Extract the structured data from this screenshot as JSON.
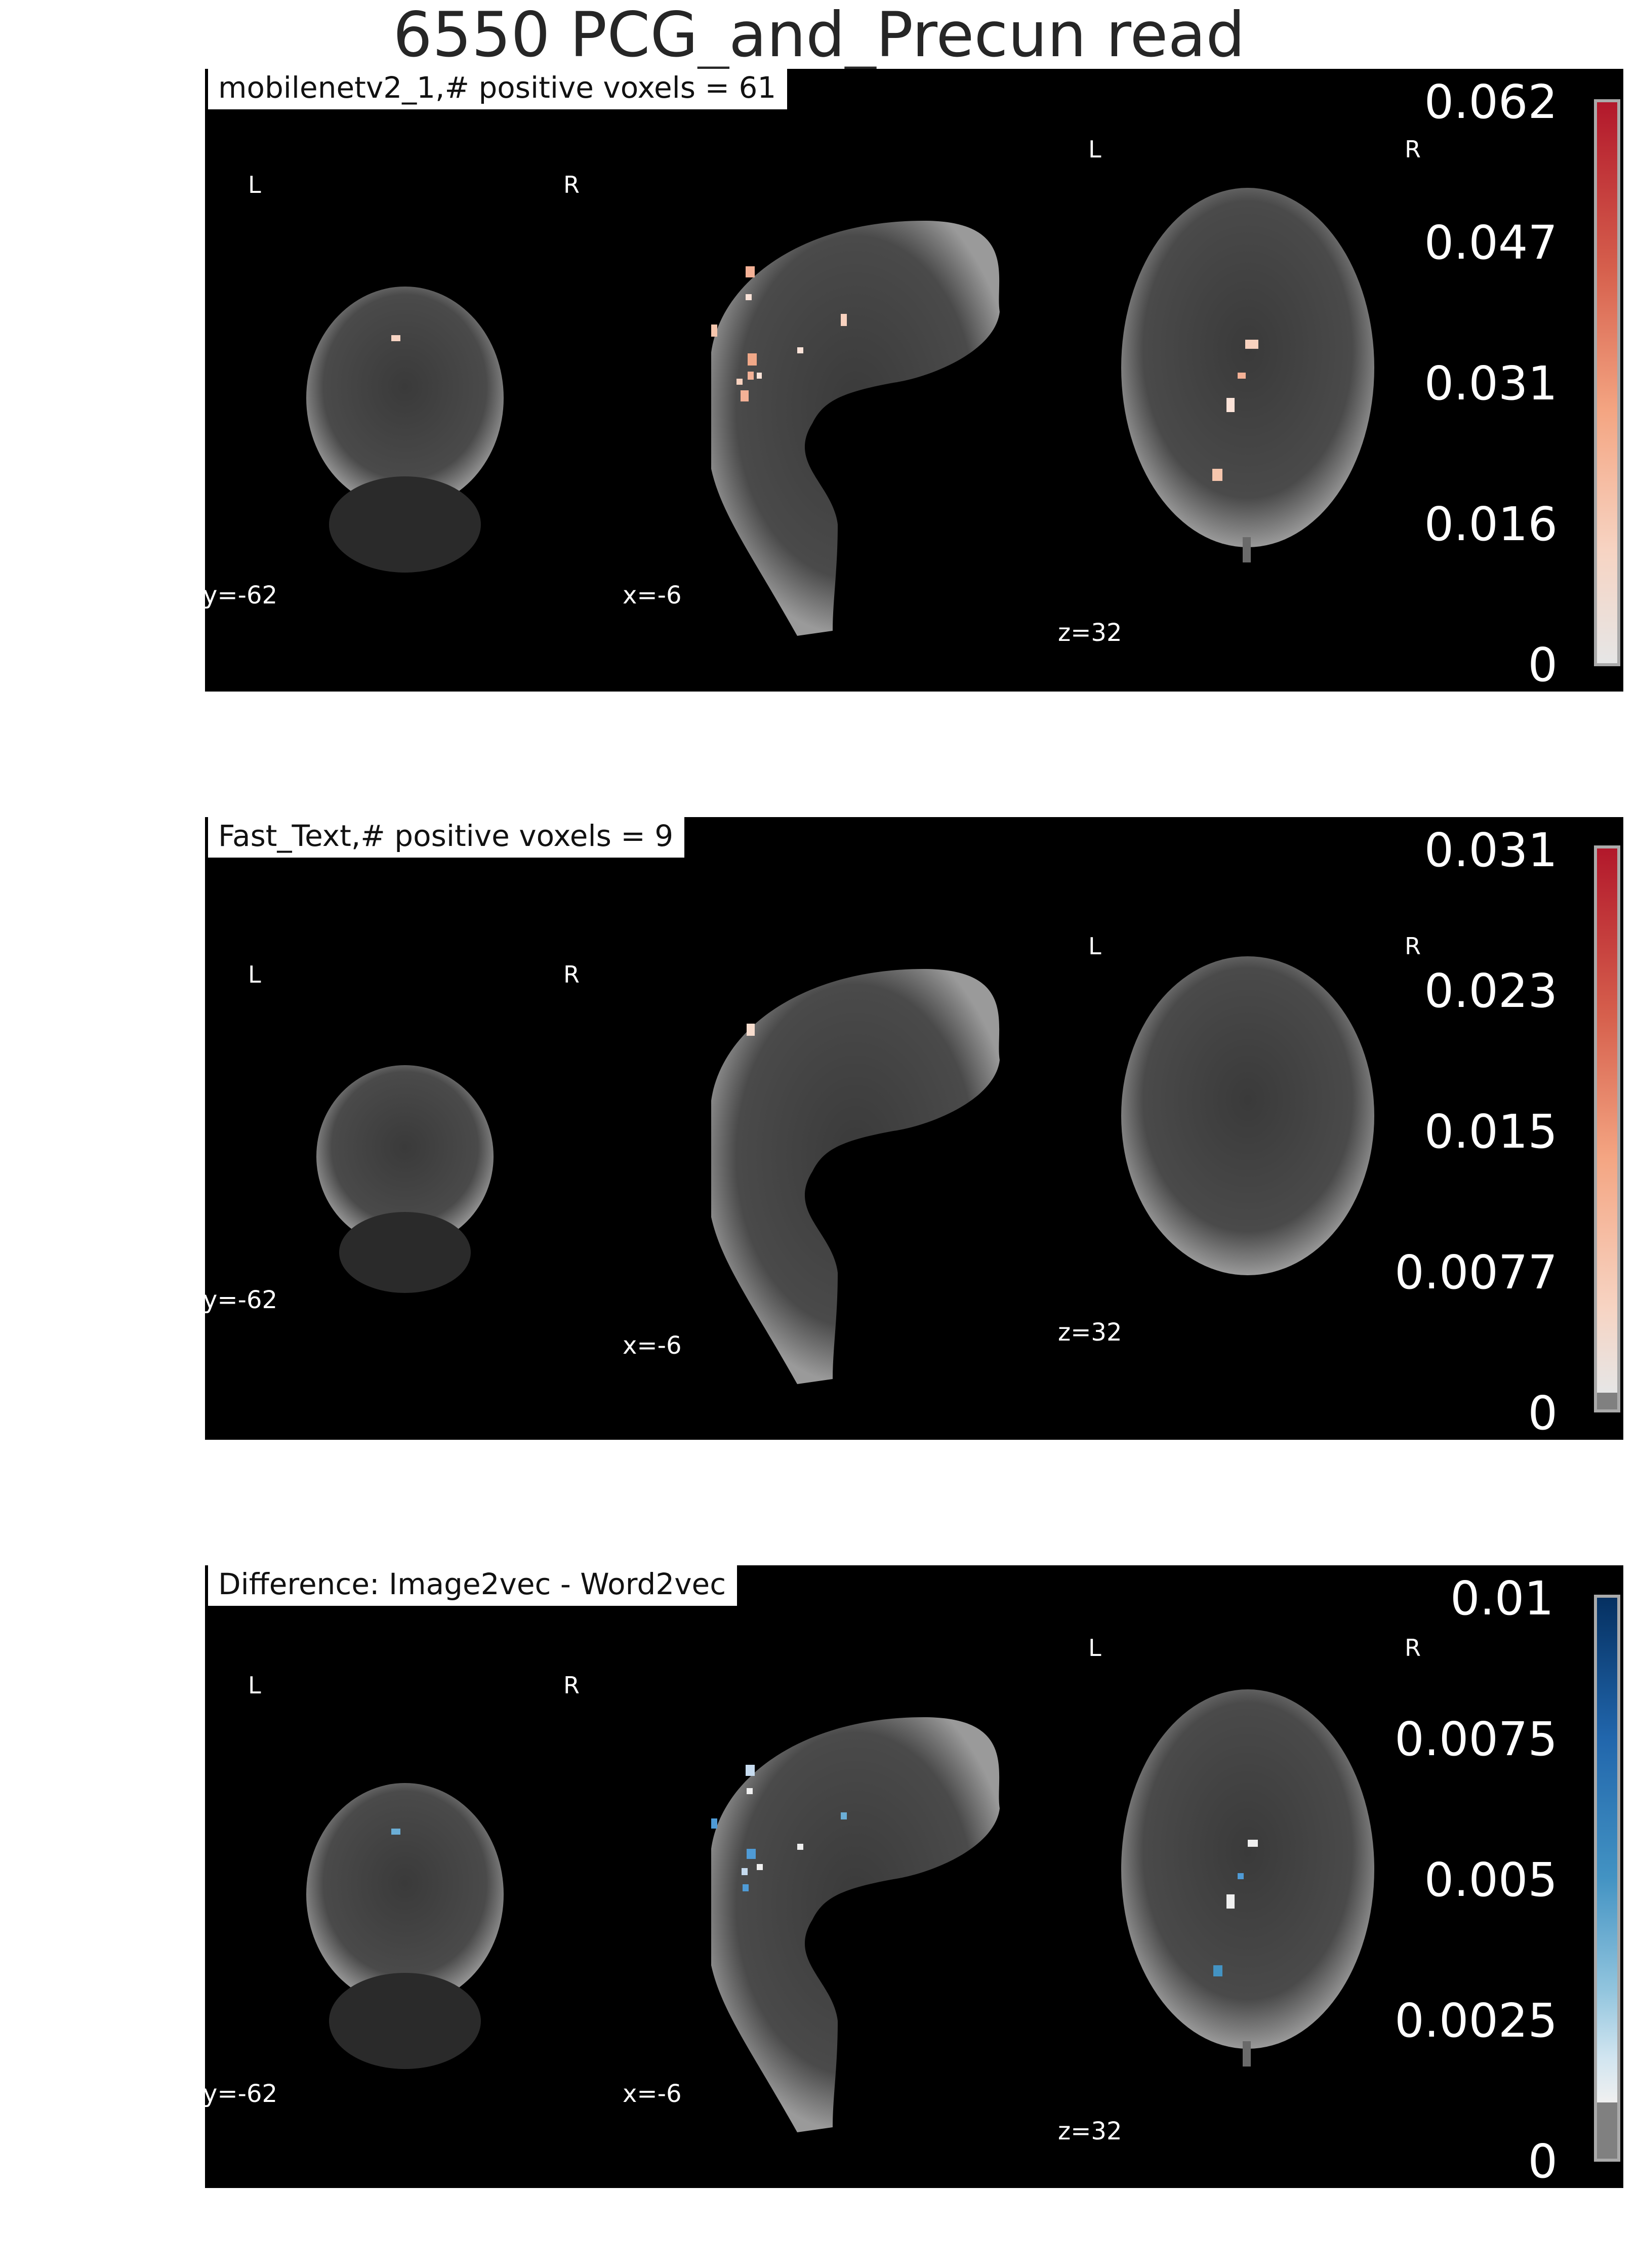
{
  "figure": {
    "title": "6550 PCG_and_Precun read"
  },
  "panels": [
    {
      "label": "mobilenetv2_1,# positive voxels = 61",
      "orientation": {
        "left": "L",
        "right": "R"
      },
      "coords": {
        "coronal": "y=-62",
        "sagittal": "x=-6",
        "axial": "z=32"
      },
      "colorbar": {
        "colormap": "reds",
        "ticks": [
          "0.062",
          "0.047",
          "0.031",
          "0.016",
          "0"
        ]
      },
      "blob_color": "#f4b196"
    },
    {
      "label": "Fast_Text,# positive voxels = 9",
      "orientation": {
        "left": "L",
        "right": "R"
      },
      "coords": {
        "coronal": "y=-62",
        "sagittal": "x=-6",
        "axial": "z=32"
      },
      "colorbar": {
        "colormap": "reds",
        "ticks": [
          "0.031",
          "0.023",
          "0.015",
          "0.0077",
          "0"
        ]
      },
      "blob_color": "#f7dccd"
    },
    {
      "label": "Difference: Image2vec - Word2vec",
      "orientation": {
        "left": "L",
        "right": "R"
      },
      "coords": {
        "coronal": "y=-62",
        "sagittal": "x=-6",
        "axial": "z=32"
      },
      "colorbar": {
        "colormap": "blues",
        "ticks": [
          "0.01",
          "0.0075",
          "0.005",
          "0.0025",
          "0"
        ]
      },
      "blob_color": "#4f9bd6"
    }
  ],
  "colors": {
    "panel_background": "#000000",
    "reds_top": "#b2182b",
    "reds_mid": "#f4a582",
    "reds_low": "#e6e6e6",
    "blues_top": "#053061",
    "blues_mid": "#4393c3",
    "blues_low": "#f0f0f0",
    "below_threshold": "#808080"
  }
}
